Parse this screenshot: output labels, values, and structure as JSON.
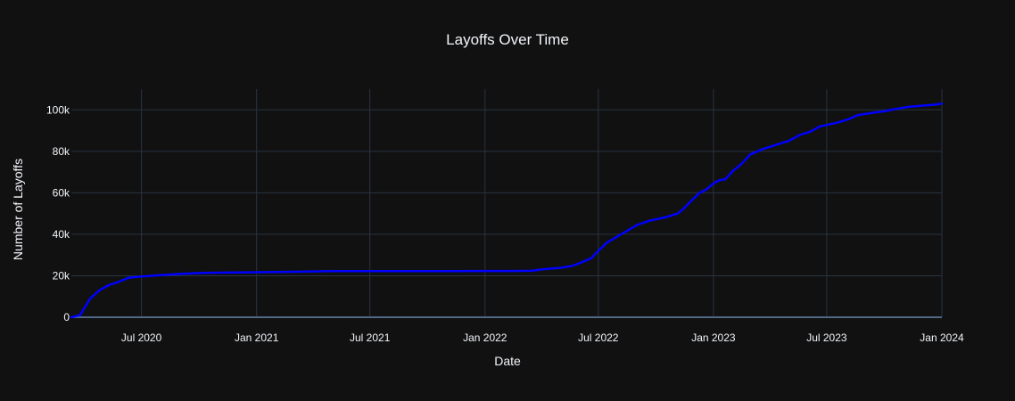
{
  "chart_data": {
    "type": "line",
    "title": "Layoffs Over Time",
    "xlabel": "Date",
    "ylabel": "Number of Layoffs",
    "x_ticks": [
      {
        "date": "2020-07-01",
        "label": "Jul 2020"
      },
      {
        "date": "2021-01-01",
        "label": "Jan 2021"
      },
      {
        "date": "2021-07-01",
        "label": "Jul 2021"
      },
      {
        "date": "2022-01-01",
        "label": "Jan 2022"
      },
      {
        "date": "2022-07-01",
        "label": "Jul 2022"
      },
      {
        "date": "2023-01-01",
        "label": "Jan 2023"
      },
      {
        "date": "2023-07-01",
        "label": "Jul 2023"
      },
      {
        "date": "2024-01-01",
        "label": "Jan 2024"
      }
    ],
    "y_ticks": [
      {
        "value": 0,
        "label": "0"
      },
      {
        "value": 20000,
        "label": "20k"
      },
      {
        "value": 40000,
        "label": "40k"
      },
      {
        "value": 60000,
        "label": "60k"
      },
      {
        "value": 80000,
        "label": "80k"
      },
      {
        "value": 100000,
        "label": "100k"
      }
    ],
    "xlim": [
      "2020-03-11",
      "2024-01-01"
    ],
    "ylim": [
      0,
      110000
    ],
    "grid": true,
    "legend": "none",
    "series": [
      {
        "color": "#0000ff",
        "x": [
          "2020-03-11",
          "2020-03-25",
          "2020-04-10",
          "2020-04-25",
          "2020-05-10",
          "2020-05-25",
          "2020-06-10",
          "2020-06-25",
          "2020-07-10",
          "2020-08-01",
          "2020-09-01",
          "2020-10-01",
          "2020-11-01",
          "2020-12-01",
          "2021-01-01",
          "2021-03-01",
          "2021-05-01",
          "2021-07-01",
          "2021-09-01",
          "2021-11-01",
          "2022-01-01",
          "2022-02-15",
          "2022-03-15",
          "2022-04-10",
          "2022-05-01",
          "2022-05-20",
          "2022-06-05",
          "2022-06-20",
          "2022-07-01",
          "2022-07-15",
          "2022-08-01",
          "2022-08-15",
          "2022-09-01",
          "2022-09-20",
          "2022-10-05",
          "2022-10-20",
          "2022-11-05",
          "2022-11-15",
          "2022-12-01",
          "2022-12-10",
          "2022-12-20",
          "2023-01-01",
          "2023-01-10",
          "2023-01-20",
          "2023-02-01",
          "2023-02-15",
          "2023-03-01",
          "2023-03-20",
          "2023-04-10",
          "2023-05-01",
          "2023-05-20",
          "2023-06-05",
          "2023-06-20",
          "2023-07-01",
          "2023-07-20",
          "2023-08-05",
          "2023-08-20",
          "2023-09-10",
          "2023-10-01",
          "2023-10-20",
          "2023-11-10",
          "2023-12-01",
          "2023-12-20",
          "2024-01-01"
        ],
        "y": [
          0,
          1000,
          9000,
          13000,
          15500,
          17000,
          19000,
          19500,
          19800,
          20300,
          20900,
          21300,
          21500,
          21600,
          21700,
          21900,
          22200,
          22200,
          22200,
          22200,
          22300,
          22300,
          22400,
          23300,
          23800,
          24700,
          26500,
          28500,
          32000,
          36000,
          39000,
          41500,
          44500,
          46500,
          47500,
          48500,
          50000,
          52500,
          57500,
          60000,
          61500,
          64500,
          66000,
          66500,
          70500,
          74000,
          78500,
          81000,
          83000,
          85000,
          88000,
          89500,
          92000,
          92700,
          94000,
          95500,
          97500,
          98500,
          99300,
          100500,
          101500,
          102000,
          102500,
          103000
        ]
      }
    ]
  }
}
